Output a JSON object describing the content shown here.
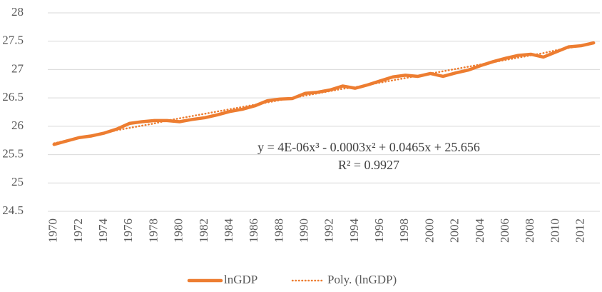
{
  "chart_data": {
    "type": "line",
    "categories": [
      "1970",
      null,
      "1972",
      null,
      "1974",
      null,
      "1976",
      null,
      "1978",
      null,
      "1980",
      null,
      "1982",
      null,
      "1984",
      null,
      "1986",
      null,
      "1988",
      null,
      "1990",
      null,
      "1992",
      null,
      "1994",
      null,
      "1996",
      null,
      "1998",
      null,
      "2000",
      null,
      "2002",
      null,
      "2004",
      null,
      "2006",
      null,
      "2008",
      null,
      "2010",
      null,
      "2012",
      null
    ],
    "series": [
      {
        "name": "lnGDP",
        "color": "#ed7d31",
        "style": "solid",
        "values": [
          25.68,
          25.74,
          25.8,
          25.83,
          25.88,
          25.95,
          26.05,
          26.08,
          26.1,
          26.1,
          26.08,
          26.12,
          26.15,
          26.2,
          26.26,
          26.3,
          26.36,
          26.45,
          26.48,
          26.49,
          26.58,
          26.6,
          26.64,
          26.71,
          26.67,
          26.73,
          26.8,
          26.87,
          26.9,
          26.88,
          26.93,
          26.88,
          26.94,
          26.99,
          27.07,
          27.14,
          27.2,
          27.25,
          27.27,
          27.22,
          27.31,
          27.4,
          27.42,
          27.47
        ]
      },
      {
        "name": "Poly. (lnGDP)",
        "color": "#ed7d31",
        "style": "dotted",
        "values": [
          25.7,
          25.75,
          25.79,
          25.84,
          25.88,
          25.93,
          25.97,
          26.01,
          26.05,
          26.1,
          26.14,
          26.18,
          26.22,
          26.26,
          26.3,
          26.34,
          26.38,
          26.42,
          26.46,
          26.5,
          26.54,
          26.58,
          26.62,
          26.66,
          26.69,
          26.73,
          26.77,
          26.81,
          26.85,
          26.89,
          26.93,
          26.97,
          27.01,
          27.05,
          27.09,
          27.13,
          27.17,
          27.21,
          27.25,
          27.29,
          27.34,
          27.38,
          27.42,
          27.46
        ]
      }
    ],
    "annotations": [
      "y = 4E-06x³ - 0.0003x² + 0.0465x + 25.656",
      "R² = 0.9927"
    ],
    "ylim": [
      24.5,
      28
    ],
    "yticks": [
      24.5,
      25,
      25.5,
      26,
      26.5,
      27,
      27.5,
      28
    ],
    "grid": true,
    "legend": "bottom"
  }
}
